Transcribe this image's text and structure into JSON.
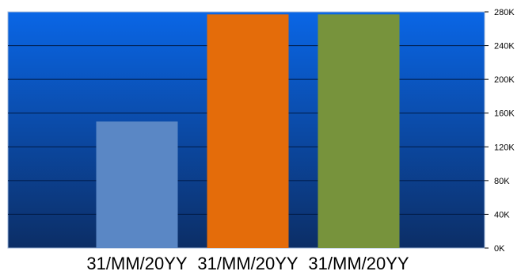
{
  "chart_data": {
    "type": "bar",
    "categories": [
      "31/MM/20YY",
      "31/MM/20YY",
      "31/MM/20YY"
    ],
    "values": [
      150000,
      277000,
      277000
    ],
    "bar_colors": [
      "#5A87C5",
      "#E46C0A",
      "#77933C"
    ],
    "ylim": [
      0,
      280000
    ],
    "y_ticks": [
      0,
      40000,
      80000,
      120000,
      160000,
      200000,
      240000,
      280000
    ],
    "y_tick_labels": [
      "0K",
      "40K",
      "80K",
      "120K",
      "160K",
      "200K",
      "240K",
      "280K"
    ],
    "y_axis_position": "right",
    "grid": true,
    "legend": "none",
    "background": {
      "top_color": "#0A66E6",
      "bottom_color": "#0C2E66",
      "gridline_color": "#001A44"
    }
  }
}
